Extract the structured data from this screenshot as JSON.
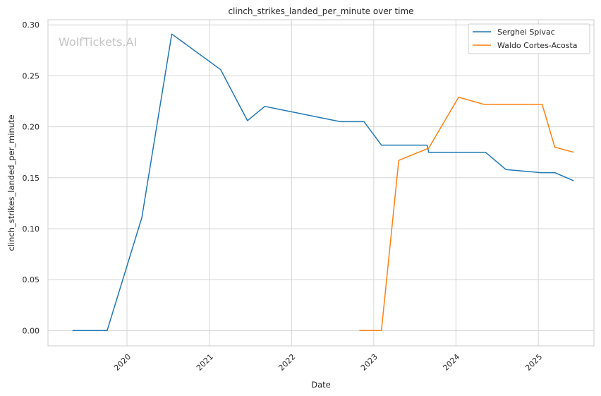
{
  "chart_data": {
    "type": "line",
    "title": "clinch_strikes_landed_per_minute over time",
    "xlabel": "Date",
    "ylabel": "clinch_strikes_landed_per_minute",
    "watermark": "WolfTickets.AI",
    "x_ticks": [
      "2020",
      "2021",
      "2022",
      "2023",
      "2024",
      "2025"
    ],
    "y_ticks": [
      "0.00",
      "0.05",
      "0.10",
      "0.15",
      "0.20",
      "0.25",
      "0.30"
    ],
    "xlim": [
      "2019-01-15",
      "2025-09-05"
    ],
    "ylim": [
      -0.015,
      0.305
    ],
    "grid": true,
    "legend_position": "top-right",
    "series": [
      {
        "name": "Serghei Spivac",
        "color": "#1f77b4",
        "x": [
          "2019-05-04",
          "2019-10-05",
          "2020-03-07",
          "2020-07-18",
          "2021-02-20",
          "2021-06-19",
          "2021-09-04",
          "2022-08-06",
          "2022-11-19",
          "2023-02-04",
          "2023-08-26",
          "2023-09-02",
          "2024-05-11",
          "2024-08-10",
          "2025-01-11",
          "2025-03-15",
          "2025-06-07"
        ],
        "values": [
          0.0,
          0.0,
          0.111,
          0.291,
          0.256,
          0.206,
          0.22,
          0.205,
          0.205,
          0.182,
          0.182,
          0.175,
          0.175,
          0.158,
          0.155,
          0.155,
          0.147
        ]
      },
      {
        "name": "Waldo Cortes-Acosta",
        "color": "#ff7f0e",
        "x": [
          "2022-10-29",
          "2023-02-04",
          "2023-04-22",
          "2023-09-02",
          "2024-01-13",
          "2024-05-04",
          "2025-01-18",
          "2025-03-15",
          "2025-06-07"
        ],
        "values": [
          0.0,
          0.0,
          0.167,
          0.179,
          0.229,
          0.222,
          0.222,
          0.18,
          0.175
        ]
      }
    ]
  }
}
